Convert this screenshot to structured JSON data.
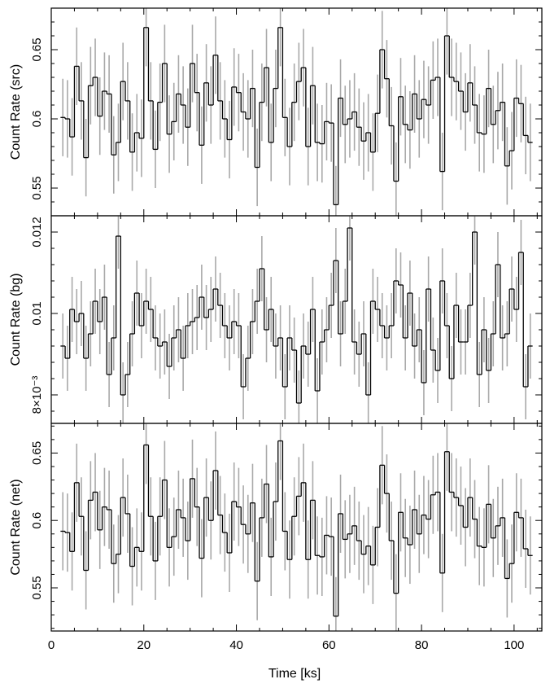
{
  "chart_data": {
    "type": "line",
    "style": "step histogram with vertical error bars",
    "xlabel": "Time [ks]",
    "xlim": [
      0,
      106
    ],
    "x_ticks": [
      0,
      20,
      40,
      60,
      80,
      100
    ],
    "x_tick_labels": [
      "0",
      "20",
      "40",
      "60",
      "80",
      "100"
    ],
    "line_color": "#000000",
    "error_color": "#a9a9a9",
    "bin_edges": [
      2,
      3,
      4,
      5,
      6,
      7,
      8,
      9,
      10,
      11,
      12,
      13,
      14,
      15,
      16,
      17,
      18,
      19,
      20,
      21,
      22,
      23,
      24,
      25,
      26,
      27,
      28,
      29,
      30,
      31,
      32,
      33,
      34,
      35,
      36,
      37,
      38,
      39,
      40,
      41,
      42,
      43,
      44,
      45,
      46,
      47,
      48,
      49,
      50,
      51,
      52,
      53,
      54,
      55,
      56,
      57,
      58,
      59,
      60,
      61,
      62,
      63,
      64,
      65,
      66,
      67,
      68,
      69,
      70,
      71,
      72,
      73,
      74,
      75,
      76,
      77,
      78,
      79,
      80,
      81,
      82,
      83,
      84,
      85,
      86,
      87,
      88,
      89,
      90,
      91,
      92,
      93,
      94,
      95,
      96,
      97,
      98,
      99,
      100,
      101,
      102,
      103,
      104
    ],
    "panels": [
      {
        "ylabel": "Count Rate (src)",
        "ylim": [
          0.53,
          0.68
        ],
        "y_ticks": [
          0.55,
          0.6,
          0.65
        ],
        "y_tick_labels": [
          "0.55",
          "0.6",
          "0.65"
        ],
        "err": 0.028,
        "values": [
          0.601,
          0.6,
          0.587,
          0.638,
          0.613,
          0.572,
          0.624,
          0.63,
          0.602,
          0.62,
          0.618,
          0.574,
          0.583,
          0.627,
          0.613,
          0.576,
          0.59,
          0.586,
          0.666,
          0.613,
          0.578,
          0.612,
          0.64,
          0.589,
          0.598,
          0.618,
          0.61,
          0.594,
          0.64,
          0.619,
          0.581,
          0.626,
          0.61,
          0.646,
          0.613,
          0.6,
          0.585,
          0.623,
          0.619,
          0.605,
          0.6,
          0.622,
          0.565,
          0.612,
          0.637,
          0.583,
          0.622,
          0.666,
          0.601,
          0.58,
          0.612,
          0.627,
          0.637,
          0.58,
          0.624,
          0.583,
          0.582,
          0.598,
          0.597,
          0.538,
          0.615,
          0.596,
          0.6,
          0.605,
          0.594,
          0.584,
          0.59,
          0.576,
          0.604,
          0.65,
          0.629,
          0.595,
          0.555,
          0.616,
          0.596,
          0.592,
          0.618,
          0.6,
          0.614,
          0.61,
          0.628,
          0.63,
          0.562,
          0.66,
          0.63,
          0.627,
          0.62,
          0.605,
          0.626,
          0.61,
          0.59,
          0.589,
          0.622,
          0.596,
          0.606,
          0.612,
          0.566,
          0.577,
          0.615,
          0.611,
          0.588,
          0.583
        ],
        "data_ymin": 0.53
      },
      {
        "ylabel": "Count Rate (bg)",
        "ylim": [
          0.0073,
          0.0124
        ],
        "y_ticks": [
          0.008,
          0.01,
          0.012
        ],
        "y_tick_labels": [
          "8×10⁻³",
          "0.01",
          "0.012"
        ],
        "err": 0.0008,
        "values": [
          0.0092,
          0.0089,
          0.0101,
          0.0098,
          0.01,
          0.0089,
          0.0095,
          0.0103,
          0.0098,
          0.0104,
          0.0085,
          0.0094,
          0.0119,
          0.008,
          0.0085,
          0.0095,
          0.0105,
          0.0097,
          0.0103,
          0.0101,
          0.0094,
          0.0092,
          0.0093,
          0.0087,
          0.0094,
          0.0096,
          0.0089,
          0.0097,
          0.0098,
          0.0099,
          0.0104,
          0.0099,
          0.0101,
          0.0106,
          0.0102,
          0.0097,
          0.0094,
          0.0098,
          0.0097,
          0.0082,
          0.0089,
          0.0098,
          0.0103,
          0.0111,
          0.0096,
          0.0101,
          0.0092,
          0.0094,
          0.0082,
          0.0094,
          0.0091,
          0.0078,
          0.0092,
          0.009,
          0.0101,
          0.0081,
          0.0093,
          0.0096,
          0.0102,
          0.0113,
          0.0095,
          0.0103,
          0.0121,
          0.0093,
          0.009,
          0.0095,
          0.008,
          0.0103,
          0.0101,
          0.0097,
          0.0094,
          0.0097,
          0.0108,
          0.0107,
          0.0094,
          0.0105,
          0.0092,
          0.0096,
          0.0083,
          0.0106,
          0.0091,
          0.0086,
          0.0108,
          0.0097,
          0.0084,
          0.0102,
          0.0093,
          0.0093,
          0.0102,
          0.012,
          0.0085,
          0.0096,
          0.0086,
          0.0095,
          0.0112,
          0.0094,
          0.0095,
          0.0106,
          0.0101,
          0.0115,
          0.0082,
          0.0092
        ],
        "data_ymin": 0.0073
      },
      {
        "ylabel": "Count Rate (net)",
        "ylim": [
          0.518,
          0.672
        ],
        "y_ticks": [
          0.55,
          0.6,
          0.65
        ],
        "y_tick_labels": [
          "0.55",
          "0.6",
          "0.65"
        ],
        "err": 0.029,
        "values": [
          0.592,
          0.591,
          0.577,
          0.628,
          0.603,
          0.563,
          0.615,
          0.621,
          0.593,
          0.61,
          0.608,
          0.568,
          0.575,
          0.617,
          0.605,
          0.566,
          0.58,
          0.577,
          0.656,
          0.603,
          0.57,
          0.603,
          0.63,
          0.58,
          0.588,
          0.608,
          0.602,
          0.585,
          0.631,
          0.61,
          0.572,
          0.617,
          0.6,
          0.637,
          0.604,
          0.591,
          0.576,
          0.614,
          0.61,
          0.597,
          0.59,
          0.613,
          0.555,
          0.602,
          0.627,
          0.573,
          0.614,
          0.659,
          0.592,
          0.571,
          0.603,
          0.618,
          0.628,
          0.571,
          0.615,
          0.574,
          0.573,
          0.589,
          0.588,
          0.529,
          0.605,
          0.586,
          0.59,
          0.596,
          0.585,
          0.575,
          0.581,
          0.567,
          0.595,
          0.641,
          0.62,
          0.585,
          0.546,
          0.606,
          0.587,
          0.582,
          0.608,
          0.59,
          0.604,
          0.601,
          0.619,
          0.621,
          0.561,
          0.651,
          0.621,
          0.617,
          0.611,
          0.595,
          0.617,
          0.601,
          0.581,
          0.58,
          0.612,
          0.587,
          0.596,
          0.602,
          0.557,
          0.568,
          0.606,
          0.602,
          0.579,
          0.574
        ],
        "data_ymin": 0.518
      }
    ]
  }
}
